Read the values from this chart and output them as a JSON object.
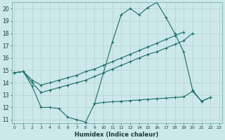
{
  "xlabel": "Humidex (Indice chaleur)",
  "x": [
    0,
    1,
    2,
    3,
    4,
    5,
    6,
    7,
    8,
    9,
    10,
    11,
    12,
    13,
    14,
    15,
    16,
    17,
    18,
    19,
    20,
    21,
    22,
    23
  ],
  "line1_x": [
    0,
    1,
    2,
    3,
    4,
    5,
    6,
    7,
    8,
    9,
    11,
    12,
    13,
    14,
    15,
    16,
    17,
    18,
    19,
    20,
    21,
    22
  ],
  "line1_y": [
    14.8,
    14.9,
    13.7,
    12.0,
    12.0,
    11.9,
    11.2,
    11.0,
    10.8,
    12.3,
    17.3,
    19.5,
    20.0,
    19.5,
    20.1,
    20.5,
    19.3,
    18.0,
    16.5,
    13.4,
    12.5,
    12.8
  ],
  "line2_x": [
    0,
    1,
    2,
    3,
    4,
    5,
    6,
    7,
    8,
    9,
    10,
    11,
    12,
    13,
    14,
    15,
    16,
    17,
    18,
    19
  ],
  "line2_y": [
    14.8,
    14.9,
    14.2,
    13.8,
    14.0,
    14.2,
    14.4,
    14.6,
    14.9,
    15.1,
    15.4,
    15.7,
    16.0,
    16.3,
    16.6,
    16.9,
    17.2,
    17.5,
    17.8,
    18.1
  ],
  "line3_x": [
    0,
    1,
    2,
    3,
    4,
    5,
    6,
    7,
    8,
    9,
    10,
    11,
    12,
    13,
    14,
    15,
    16,
    17,
    18,
    19,
    20
  ],
  "line3_y": [
    14.8,
    14.9,
    14.0,
    13.2,
    13.4,
    13.6,
    13.8,
    14.0,
    14.2,
    14.5,
    14.8,
    15.1,
    15.4,
    15.7,
    16.0,
    16.3,
    16.5,
    16.8,
    17.1,
    17.4,
    18.0
  ],
  "line4_x": [
    9,
    10,
    11,
    12,
    13,
    14,
    15,
    16,
    17,
    18,
    19,
    20,
    21,
    22
  ],
  "line4_y": [
    12.3,
    12.4,
    12.45,
    12.5,
    12.55,
    12.6,
    12.65,
    12.7,
    12.75,
    12.8,
    12.85,
    13.3,
    12.5,
    12.8
  ],
  "bg_color": "#cce8e8",
  "grid_color": "#b8d4d4",
  "line_color": "#1a6e6a",
  "xlim": [
    0,
    23
  ],
  "ylim": [
    11,
    20.5
  ],
  "yticks": [
    11,
    12,
    13,
    14,
    15,
    16,
    17,
    18,
    19,
    20
  ],
  "xticks": [
    0,
    1,
    2,
    3,
    4,
    5,
    6,
    7,
    8,
    9,
    10,
    11,
    12,
    13,
    14,
    15,
    16,
    17,
    18,
    19,
    20,
    21,
    22,
    23
  ]
}
